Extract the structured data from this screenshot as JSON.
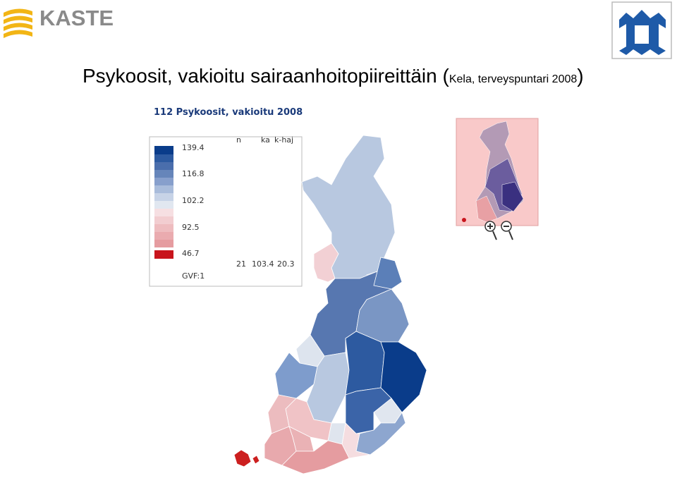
{
  "logo": "KASTE",
  "title": {
    "main": "Psykoosit, vakioitu sairaanhoitopiireittäin",
    "open": "(",
    "source": "Kela, terveyspuntari 2008",
    "close": ")"
  },
  "map": {
    "title": "112 Psykoosit, vakioitu 2008",
    "legend": {
      "labels": [
        139.4,
        116.8,
        102.2,
        92.5,
        46.7
      ],
      "stats_header": [
        "n",
        "ka",
        "k-haj"
      ],
      "stats": [
        21,
        103.4,
        20.3
      ],
      "gvf": "GVF:1"
    }
  }
}
